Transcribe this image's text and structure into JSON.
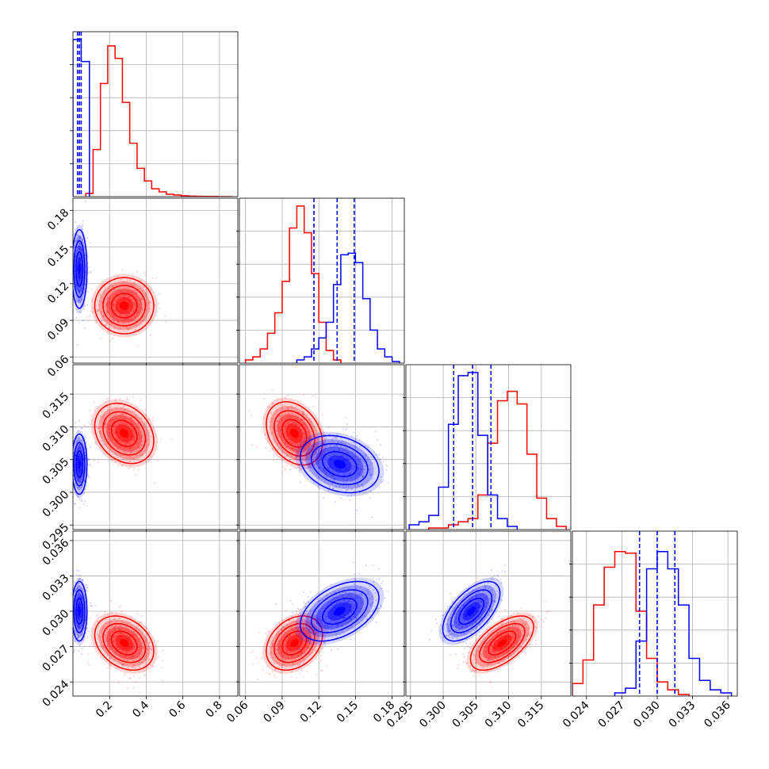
{
  "chart_data": {
    "type": "corner",
    "grid": true,
    "series": [
      {
        "color": "#ff0000"
      },
      {
        "color": "#0000ff"
      }
    ],
    "params": [
      {
        "range": [
          0.0,
          0.9
        ],
        "ticks": [
          0.2,
          0.4,
          0.6,
          0.8
        ],
        "tick_labels": [
          "0.2",
          "0.4",
          "0.6",
          "0.8"
        ]
      },
      {
        "range": [
          0.055,
          0.19
        ],
        "ticks": [
          0.06,
          0.09,
          0.12,
          0.15,
          0.18
        ],
        "tick_labels": [
          "0.06",
          "0.09",
          "0.12",
          "0.15",
          "0.18"
        ]
      },
      {
        "range": [
          0.2943,
          0.3195
        ],
        "ticks": [
          0.295,
          0.3,
          0.305,
          0.31,
          0.315
        ],
        "tick_labels": [
          "0.295",
          "0.300",
          "0.305",
          "0.310",
          "0.315"
        ]
      },
      {
        "range": [
          0.0228,
          0.0368
        ],
        "ticks": [
          0.024,
          0.027,
          0.03,
          0.033,
          0.036
        ],
        "tick_labels": [
          "0.024",
          "0.027",
          "0.030",
          "0.033",
          "0.036"
        ]
      }
    ],
    "histograms": [
      {
        "param": 0,
        "series": [
          {
            "color": "#ff0000",
            "bins_x": [
              0.07,
              0.11,
              0.15,
              0.19,
              0.23,
              0.27,
              0.31,
              0.35,
              0.39,
              0.43,
              0.47,
              0.51,
              0.55,
              0.59,
              0.63,
              0.67,
              0.71,
              0.75,
              0.79,
              0.83,
              0.87
            ],
            "values": [
              0.02,
              0.3,
              0.72,
              0.96,
              0.88,
              0.6,
              0.34,
              0.18,
              0.1,
              0.05,
              0.03,
              0.015,
              0.01,
              0.005,
              0.003,
              0.002,
              0.001,
              0.001,
              0.0,
              0.0
            ]
          },
          {
            "color": "#0000ff",
            "bins_x": [
              0.0,
              0.045,
              0.09
            ],
            "values": [
              1.0,
              0.86
            ]
          }
        ],
        "quantiles": {
          "color": "#0000ff",
          "x": [
            0.025,
            0.035,
            0.045
          ]
        }
      },
      {
        "param": 1,
        "series": [
          {
            "color": "#ff0000",
            "bins_x": [
              0.06,
              0.066,
              0.072,
              0.078,
              0.084,
              0.09,
              0.096,
              0.102,
              0.108,
              0.114,
              0.12,
              0.126,
              0.132,
              0.138
            ],
            "values": [
              0.02,
              0.04,
              0.09,
              0.19,
              0.32,
              0.52,
              0.86,
              1.0,
              0.83,
              0.57,
              0.26,
              0.08,
              0.02
            ]
          },
          {
            "color": "#0000ff",
            "bins_x": [
              0.102,
              0.108,
              0.114,
              0.12,
              0.126,
              0.132,
              0.138,
              0.144,
              0.15,
              0.156,
              0.162,
              0.168,
              0.174,
              0.18,
              0.186
            ],
            "values": [
              0.02,
              0.04,
              0.09,
              0.16,
              0.26,
              0.5,
              0.69,
              0.7,
              0.64,
              0.41,
              0.21,
              0.09,
              0.04,
              0.01
            ]
          }
        ],
        "quantiles": {
          "color": "#0000ff",
          "x": [
            0.116,
            0.135,
            0.149
          ]
        }
      },
      {
        "param": 2,
        "series": [
          {
            "color": "#ff0000",
            "bins_x": [
              0.2978,
              0.2993,
              0.3008,
              0.3023,
              0.3038,
              0.3053,
              0.3068,
              0.3083,
              0.3098,
              0.3113,
              0.3128,
              0.3143,
              0.3158,
              0.3173,
              0.3188
            ],
            "values": [
              0.01,
              0.01,
              0.03,
              0.05,
              0.07,
              0.22,
              0.55,
              0.82,
              0.88,
              0.8,
              0.48,
              0.2,
              0.07,
              0.02
            ]
          },
          {
            "color": "#0000ff",
            "bins_x": [
              0.2948,
              0.2963,
              0.2978,
              0.2993,
              0.3008,
              0.3023,
              0.3038,
              0.3053,
              0.3068,
              0.3083,
              0.3098,
              0.3113
            ],
            "values": [
              0.03,
              0.05,
              0.09,
              0.27,
              0.67,
              0.98,
              1.0,
              0.6,
              0.22,
              0.07,
              0.02
            ]
          }
        ],
        "quantiles": {
          "color": "#0000ff",
          "x": [
            0.3016,
            0.3045,
            0.3073
          ]
        }
      },
      {
        "param": 3,
        "series": [
          {
            "color": "#ff0000",
            "bins_x": [
              0.0228,
              0.0237,
              0.0246,
              0.0255,
              0.0264,
              0.0273,
              0.0282,
              0.0291,
              0.03,
              0.0309,
              0.0318,
              0.0327
            ],
            "values": [
              0.08,
              0.23,
              0.58,
              0.82,
              0.92,
              0.91,
              0.54,
              0.24,
              0.09,
              0.04,
              0.01
            ]
          },
          {
            "color": "#0000ff",
            "bins_x": [
              0.0264,
              0.0273,
              0.0282,
              0.0291,
              0.03,
              0.0309,
              0.0318,
              0.0327,
              0.0336,
              0.0345,
              0.0354,
              0.0363
            ],
            "values": [
              0.02,
              0.05,
              0.35,
              0.81,
              0.92,
              0.81,
              0.58,
              0.24,
              0.1,
              0.04,
              0.02
            ]
          }
        ],
        "quantiles": {
          "color": "#0000ff",
          "x": [
            0.0285,
            0.03,
            0.0315
          ]
        }
      }
    ],
    "contours_2d": [
      {
        "x_param": 0,
        "y_param": 1,
        "series": [
          {
            "color": "#ff0000",
            "mean": [
              0.28,
              0.102
            ],
            "sd": [
              0.07,
              0.01
            ],
            "corr": 0.0
          },
          {
            "color": "#0000ff",
            "mean": [
              0.035,
              0.132
            ],
            "sd": [
              0.018,
              0.014
            ],
            "corr": 0.0
          }
        ]
      },
      {
        "x_param": 0,
        "y_param": 2,
        "series": [
          {
            "color": "#ff0000",
            "mean": [
              0.28,
              0.309
            ],
            "sd": [
              0.07,
              0.002
            ],
            "corr": -0.25
          },
          {
            "color": "#0000ff",
            "mean": [
              0.035,
              0.3043
            ],
            "sd": [
              0.018,
              0.002
            ],
            "corr": 0.0
          }
        ]
      },
      {
        "x_param": 1,
        "y_param": 2,
        "series": [
          {
            "color": "#ff0000",
            "mean": [
              0.1,
              0.309
            ],
            "sd": [
              0.01,
              0.0021
            ],
            "corr": -0.3
          },
          {
            "color": "#0000ff",
            "mean": [
              0.137,
              0.3043
            ],
            "sd": [
              0.014,
              0.0019
            ],
            "corr": -0.25
          }
        ]
      },
      {
        "x_param": 0,
        "y_param": 3,
        "series": [
          {
            "color": "#ff0000",
            "mean": [
              0.28,
              0.0273
            ],
            "sd": [
              0.07,
              0.001
            ],
            "corr": -0.3
          },
          {
            "color": "#0000ff",
            "mean": [
              0.035,
              0.03
            ],
            "sd": [
              0.018,
              0.0011
            ],
            "corr": 0.0
          }
        ]
      },
      {
        "x_param": 1,
        "y_param": 3,
        "series": [
          {
            "color": "#ff0000",
            "mean": [
              0.1,
              0.0273
            ],
            "sd": [
              0.01,
              0.001
            ],
            "corr": 0.3
          },
          {
            "color": "#0000ff",
            "mean": [
              0.137,
              0.03
            ],
            "sd": [
              0.014,
              0.0011
            ],
            "corr": 0.45
          }
        ]
      },
      {
        "x_param": 2,
        "y_param": 3,
        "series": [
          {
            "color": "#ff0000",
            "mean": [
              0.309,
              0.0273
            ],
            "sd": [
              0.0021,
              0.001
            ],
            "corr": 0.6
          },
          {
            "color": "#0000ff",
            "mean": [
              0.3043,
              0.03
            ],
            "sd": [
              0.0019,
              0.0011
            ],
            "corr": 0.6
          }
        ]
      }
    ]
  }
}
